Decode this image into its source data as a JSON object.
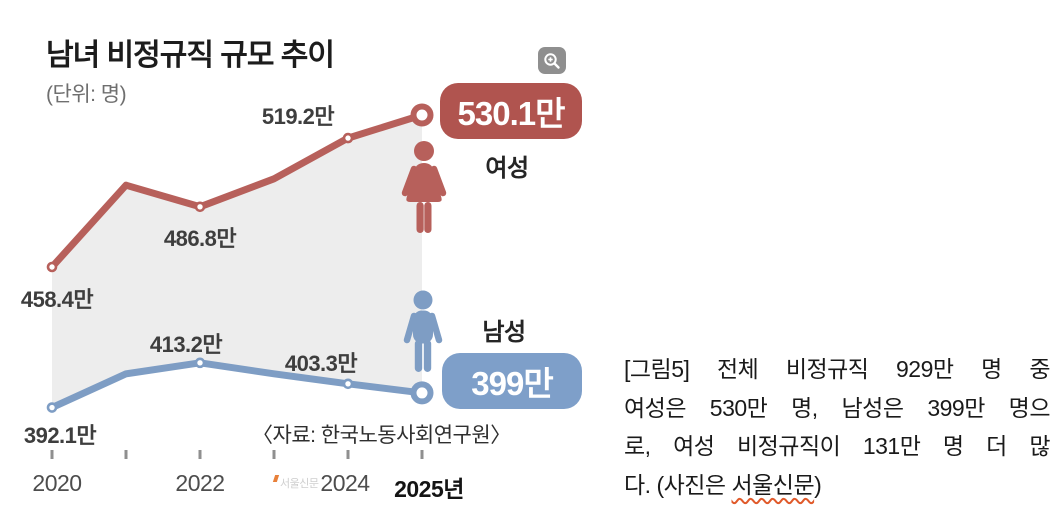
{
  "chart": {
    "title": "남녀 비정규직 규모 추이",
    "unit_label": "(단위: 명)",
    "source": "〈자료: 한국노동사회연구원〉",
    "watermark": "서울신문",
    "colors": {
      "women_line": "#b7605b",
      "women_badge": "#b0544f",
      "men_line": "#7e9dc4",
      "men_badge": "#7e9fc9",
      "area_fill": "#ededed",
      "tick": "#8f8f8f"
    },
    "series_labels": {
      "women": "여성",
      "men": "남성"
    },
    "badges": {
      "women": "530.1만",
      "men": "399만"
    },
    "point_labels": {
      "w2020": "458.4만",
      "w2022": "486.8만",
      "w2024": "519.2만",
      "m2020": "392.1만",
      "m2022": "413.2만",
      "m2024": "403.3만"
    },
    "axis_labels": [
      {
        "text": "2020"
      },
      {
        "text": "2022"
      },
      {
        "text": "2024"
      },
      {
        "text": "2025년"
      }
    ]
  },
  "chart_data": {
    "type": "line",
    "title": "남녀 비정규직 규모 추이",
    "unit": "만 명 (10,000 persons)",
    "x": [
      2020,
      2021,
      2022,
      2023,
      2024,
      2025
    ],
    "x_tick_labels": [
      "2020",
      "",
      "2022",
      "",
      "2024",
      "2025년"
    ],
    "series": [
      {
        "name": "여성",
        "color": "#b7605b",
        "values": [
          458.4,
          497,
          486.8,
          500,
          519.2,
          530.1
        ],
        "labeled_values": {
          "2020": "458.4만",
          "2022": "486.8만",
          "2024": "519.2만",
          "2025": "530.1만"
        }
      },
      {
        "name": "남성",
        "color": "#7e9dc4",
        "values": [
          392.1,
          408,
          413.2,
          408,
          403.3,
          399
        ],
        "labeled_values": {
          "2020": "392.1만",
          "2022": "413.2만",
          "2024": "403.3만",
          "2025": "399만"
        }
      }
    ],
    "estimated_years": [
      2021,
      2023
    ],
    "ylim": [
      380,
      545
    ],
    "grid": false,
    "area_between_series_shaded": true,
    "legend_position": "right-inline",
    "source": "〈자료: 한국노동사회연구원〉"
  },
  "caption": {
    "lines": [
      "[그림5] 전체 비정규직 929만 명 중",
      "여성은 530만 명, 남성은 399만 명으",
      "로, 여성 비정규직이 131만 명 더 많"
    ],
    "last_line_prefix": "다. (사진은 ",
    "last_line_underlined": "서울신문",
    "last_line_suffix": ")"
  }
}
